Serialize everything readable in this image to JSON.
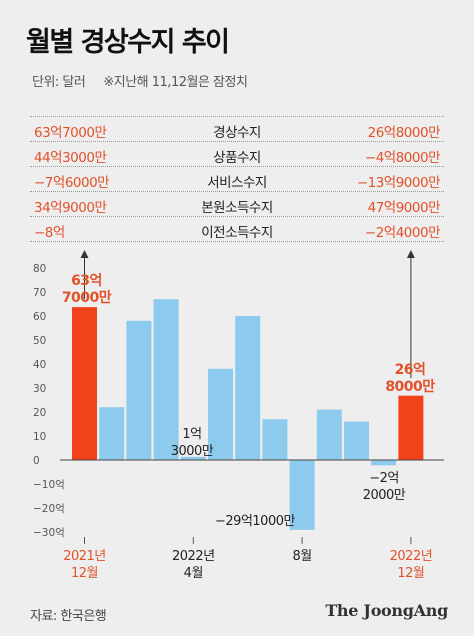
{
  "header": {
    "title": "월별 경상수지 추이",
    "unit": "단위: 달러",
    "note": "※지난해 11,12월은 잠정치"
  },
  "table": {
    "rows": [
      {
        "left": "63억7000만",
        "label": "경상수지",
        "right": "26억8000만"
      },
      {
        "left": "44억3000만",
        "label": "상품수지",
        "right": "−4억8000만"
      },
      {
        "left": "−7억6000만",
        "label": "서비스수지",
        "right": "−13억9000만"
      },
      {
        "left": "34억9000만",
        "label": "본원소득수지",
        "right": "47억9000만"
      },
      {
        "left": "−8억",
        "label": "이전소득수지",
        "right": "−2억4000만"
      }
    ]
  },
  "chart_data": {
    "type": "bar",
    "ylabel": "",
    "yunit": "억",
    "ylim": [
      -30,
      80
    ],
    "yticks": [
      80,
      70,
      60,
      50,
      40,
      30,
      20,
      10,
      0,
      -10,
      -20,
      -30
    ],
    "ytick_labels": [
      "80",
      "70",
      "60",
      "50",
      "40",
      "30",
      "20",
      "10",
      "0",
      "−10억",
      "−20억",
      "−30억"
    ],
    "categories": [
      "2021.12",
      "2022.1",
      "2022.2",
      "2022.3",
      "2022.4",
      "2022.5",
      "2022.6",
      "2022.7",
      "2022.8",
      "2022.9",
      "2022.10",
      "2022.11",
      "2022.12"
    ],
    "values": [
      63.7,
      22,
      58,
      67,
      1.3,
      38,
      60,
      17,
      -29.1,
      21,
      16,
      -2.2,
      26.8
    ],
    "highlight": [
      0,
      12
    ],
    "colors": {
      "normal": "#8ccbee",
      "highlight": "#f2421c",
      "label_highlight": "#e2522a",
      "axis": "#444444"
    },
    "x_labels": [
      {
        "index": 0,
        "lines": [
          "2021년",
          "12월"
        ],
        "highlight": true
      },
      {
        "index": 4,
        "lines": [
          "2022년",
          "4월"
        ],
        "highlight": false
      },
      {
        "index": 8,
        "lines": [
          "8월"
        ],
        "highlight": false
      },
      {
        "index": 12,
        "lines": [
          "2022년",
          "12월"
        ],
        "highlight": true
      }
    ],
    "annotations": [
      {
        "index": 0,
        "lines": [
          "63억",
          "7000만"
        ],
        "highlight": true
      },
      {
        "index": 4,
        "lines": [
          "1억",
          "3000만"
        ],
        "highlight": false
      },
      {
        "index": 8,
        "lines": [
          "−29억1000만"
        ],
        "highlight": false
      },
      {
        "index": 11,
        "lines": [
          "−2억",
          "2000만"
        ],
        "highlight": false
      },
      {
        "index": 12,
        "lines": [
          "26억",
          "8000만"
        ],
        "highlight": true
      }
    ]
  },
  "footer": {
    "source": "자료: 한국은행",
    "brand": "The JoongAng"
  }
}
